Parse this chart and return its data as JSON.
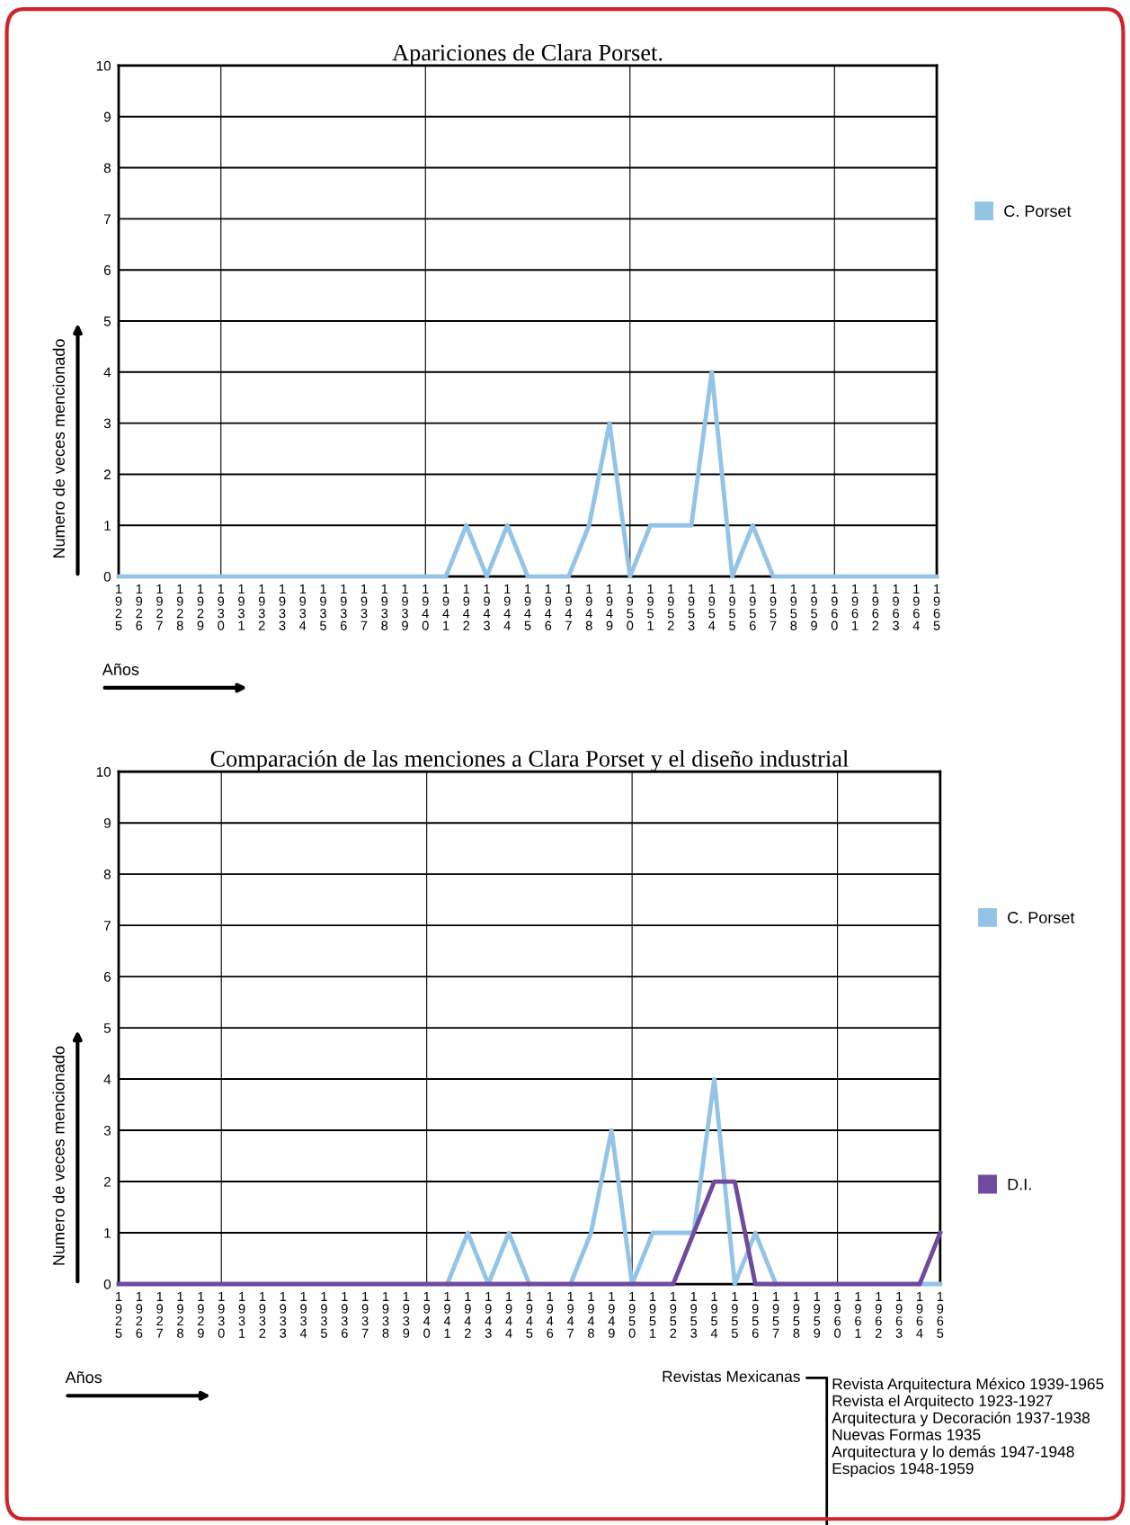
{
  "chart_data": [
    {
      "type": "line",
      "title": "Apariciones de Clara Porset.",
      "xlabel": "Años",
      "ylabel": "Numero de veces mencionado",
      "categories": [
        "1925",
        "1926",
        "1927",
        "1928",
        "1929",
        "1930",
        "1931",
        "1932",
        "1933",
        "1934",
        "1935",
        "1936",
        "1937",
        "1938",
        "1939",
        "1940",
        "1941",
        "1942",
        "1943",
        "1944",
        "1945",
        "1946",
        "1947",
        "1948",
        "1949",
        "1950",
        "1951",
        "1952",
        "1953",
        "1954",
        "1955",
        "1956",
        "1957",
        "1958",
        "1959",
        "1960",
        "1961",
        "1962",
        "1963",
        "1964",
        "1965"
      ],
      "series": [
        {
          "name": "C. Porset",
          "color": "#93c4e8",
          "values": [
            0,
            0,
            0,
            0,
            0,
            0,
            0,
            0,
            0,
            0,
            0,
            0,
            0,
            0,
            0,
            0,
            0,
            1,
            0,
            1,
            0,
            0,
            0,
            1,
            3,
            0,
            1,
            1,
            1,
            4,
            0,
            1,
            0,
            0,
            0,
            0,
            0,
            0,
            0,
            0,
            0
          ]
        }
      ],
      "ylim": [
        0,
        10
      ],
      "yticks": [
        0,
        1,
        2,
        3,
        4,
        5,
        6,
        7,
        8,
        9,
        10
      ],
      "grid": true,
      "legend": "right",
      "marker": "none",
      "line_style": "solid"
    },
    {
      "type": "line",
      "title": "Comparación de las menciones a Clara Porset y el diseño industrial",
      "xlabel": "Años",
      "ylabel": "Numero de veces mencionado",
      "categories": [
        "1925",
        "1926",
        "1927",
        "1928",
        "1929",
        "1930",
        "1931",
        "1932",
        "1933",
        "1934",
        "1935",
        "1936",
        "1937",
        "1938",
        "1939",
        "1940",
        "1941",
        "1942",
        "1943",
        "1944",
        "1945",
        "1946",
        "1947",
        "1948",
        "1949",
        "1950",
        "1951",
        "1952",
        "1953",
        "1954",
        "1955",
        "1956",
        "1957",
        "1958",
        "1959",
        "1960",
        "1961",
        "1962",
        "1963",
        "1964",
        "1965"
      ],
      "series": [
        {
          "name": "C. Porset",
          "color": "#93c4e8",
          "values": [
            null,
            null,
            null,
            null,
            null,
            null,
            null,
            null,
            null,
            null,
            null,
            null,
            null,
            null,
            null,
            null,
            0,
            1,
            0,
            1,
            0,
            null,
            0,
            1,
            3,
            0,
            1,
            1,
            1,
            4,
            0,
            1,
            0,
            null,
            null,
            null,
            null,
            null,
            null,
            0,
            0
          ]
        },
        {
          "name": "D.I.",
          "color": "#6f4a9e",
          "values": [
            0,
            0,
            0,
            0,
            0,
            0,
            0,
            0,
            0,
            0,
            0,
            0,
            0,
            0,
            0,
            0,
            0,
            0,
            0,
            0,
            0,
            0,
            0,
            0,
            0,
            0,
            0,
            0,
            1,
            2,
            2,
            0,
            0,
            0,
            0,
            0,
            0,
            0,
            0,
            0,
            1
          ]
        }
      ],
      "ylim": [
        0,
        10
      ],
      "yticks": [
        0,
        1,
        2,
        3,
        4,
        5,
        6,
        7,
        8,
        9,
        10
      ],
      "grid": true,
      "legend": "right",
      "marker": "none",
      "line_style": "solid",
      "annotations": [
        "Revistas Mexicanas",
        "Revista Arquitectura México 1939-1965",
        "Revista el Arquitecto 1923-1927",
        "Arquitectura y Decoración 1937-1938",
        "Nuevas Formas 1935",
        "Arquitectura y lo demás 1947-1948",
        "Espacios 1948-1959"
      ]
    }
  ]
}
